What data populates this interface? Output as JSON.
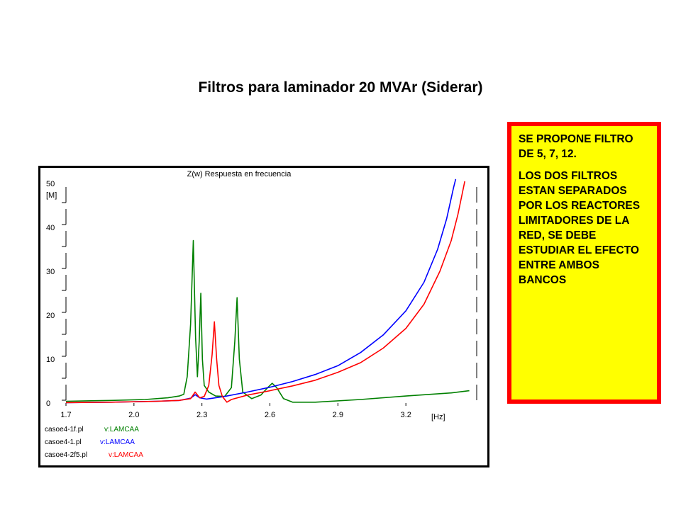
{
  "slide_title": "Filtros para laminador 20 MVAr  (Siderar)",
  "note": {
    "p1": "SE PROPONE FILTRO DE 5, 7, 12.",
    "p2": "LOS DOS FILTROS ESTAN SEPARADOS POR LOS REACTORES LIMITADORES DE LA RED, SE DEBE ESTUDIAR EL EFECTO ENTRE AMBOS BANCOS",
    "border_color": "#ff0000",
    "background": "#ffff00"
  },
  "chart_data": {
    "type": "line",
    "title": "Z(w) Respuesta en frecuencia",
    "xlabel": "[Hz]",
    "ylabel": "[M]",
    "xlim": [
      1.7,
      3.5
    ],
    "ylim": [
      0,
      50
    ],
    "x_ticks": [
      "1.7",
      "2.0",
      "2.3",
      "2.6",
      "2.9",
      "3.2"
    ],
    "y_ticks": [
      "0",
      "10",
      "20",
      "30",
      "40",
      "50"
    ],
    "legend_position": "bottom-left",
    "series": [
      {
        "name": "casoe4-1f.pl",
        "signal": "v:LAMCAA",
        "color": "#008000",
        "points": [
          [
            1.7,
            0.4
          ],
          [
            1.9,
            0.6
          ],
          [
            2.05,
            0.8
          ],
          [
            2.15,
            1.2
          ],
          [
            2.2,
            1.6
          ],
          [
            2.22,
            2.0
          ],
          [
            2.235,
            6
          ],
          [
            2.25,
            18
          ],
          [
            2.262,
            37
          ],
          [
            2.272,
            15
          ],
          [
            2.28,
            6
          ],
          [
            2.288,
            14
          ],
          [
            2.295,
            25
          ],
          [
            2.302,
            10
          ],
          [
            2.31,
            4
          ],
          [
            2.33,
            2.5
          ],
          [
            2.36,
            1.6
          ],
          [
            2.4,
            1.5
          ],
          [
            2.43,
            3.5
          ],
          [
            2.445,
            14
          ],
          [
            2.455,
            24
          ],
          [
            2.465,
            10
          ],
          [
            2.48,
            2.5
          ],
          [
            2.52,
            1.0
          ],
          [
            2.56,
            1.8
          ],
          [
            2.59,
            3.5
          ],
          [
            2.61,
            4.5
          ],
          [
            2.63,
            3.5
          ],
          [
            2.66,
            1.0
          ],
          [
            2.7,
            0.2
          ],
          [
            2.8,
            0.2
          ],
          [
            3.0,
            0.8
          ],
          [
            3.2,
            1.6
          ],
          [
            3.4,
            2.3
          ],
          [
            3.48,
            2.8
          ]
        ]
      },
      {
        "name": "casoe4-1.pl",
        "signal": "v:LAMCAA",
        "color": "#0000ff",
        "points": [
          [
            1.7,
            0.1
          ],
          [
            1.9,
            0.2
          ],
          [
            2.1,
            0.4
          ],
          [
            2.2,
            0.6
          ],
          [
            2.25,
            1.1
          ],
          [
            2.27,
            1.9
          ],
          [
            2.29,
            1.2
          ],
          [
            2.32,
            0.9
          ],
          [
            2.4,
            1.5
          ],
          [
            2.5,
            2.5
          ],
          [
            2.6,
            3.6
          ],
          [
            2.7,
            4.9
          ],
          [
            2.8,
            6.5
          ],
          [
            2.9,
            8.5
          ],
          [
            3.0,
            11.5
          ],
          [
            3.1,
            15.5
          ],
          [
            3.2,
            21
          ],
          [
            3.28,
            27.5
          ],
          [
            3.34,
            35
          ],
          [
            3.38,
            42
          ],
          [
            3.41,
            49
          ],
          [
            3.42,
            51
          ]
        ]
      },
      {
        "name": "casoe4-2f5.pl",
        "signal": "v:LAMCAA",
        "color": "#ff0000",
        "points": [
          [
            1.7,
            0.1
          ],
          [
            1.9,
            0.2
          ],
          [
            2.1,
            0.4
          ],
          [
            2.2,
            0.6
          ],
          [
            2.25,
            1.0
          ],
          [
            2.27,
            2.5
          ],
          [
            2.29,
            1.2
          ],
          [
            2.31,
            1.5
          ],
          [
            2.33,
            4
          ],
          [
            2.345,
            11
          ],
          [
            2.355,
            18.5
          ],
          [
            2.365,
            10
          ],
          [
            2.375,
            4
          ],
          [
            2.39,
            1.5
          ],
          [
            2.41,
            0.2
          ],
          [
            2.43,
            0.8
          ],
          [
            2.5,
            1.8
          ],
          [
            2.6,
            2.8
          ],
          [
            2.7,
            3.9
          ],
          [
            2.8,
            5.2
          ],
          [
            2.9,
            7
          ],
          [
            3.0,
            9.2
          ],
          [
            3.1,
            12.5
          ],
          [
            3.2,
            17
          ],
          [
            3.28,
            22.5
          ],
          [
            3.35,
            30
          ],
          [
            3.4,
            37
          ],
          [
            3.43,
            43
          ],
          [
            3.45,
            48
          ],
          [
            3.46,
            50.5
          ]
        ]
      }
    ]
  }
}
